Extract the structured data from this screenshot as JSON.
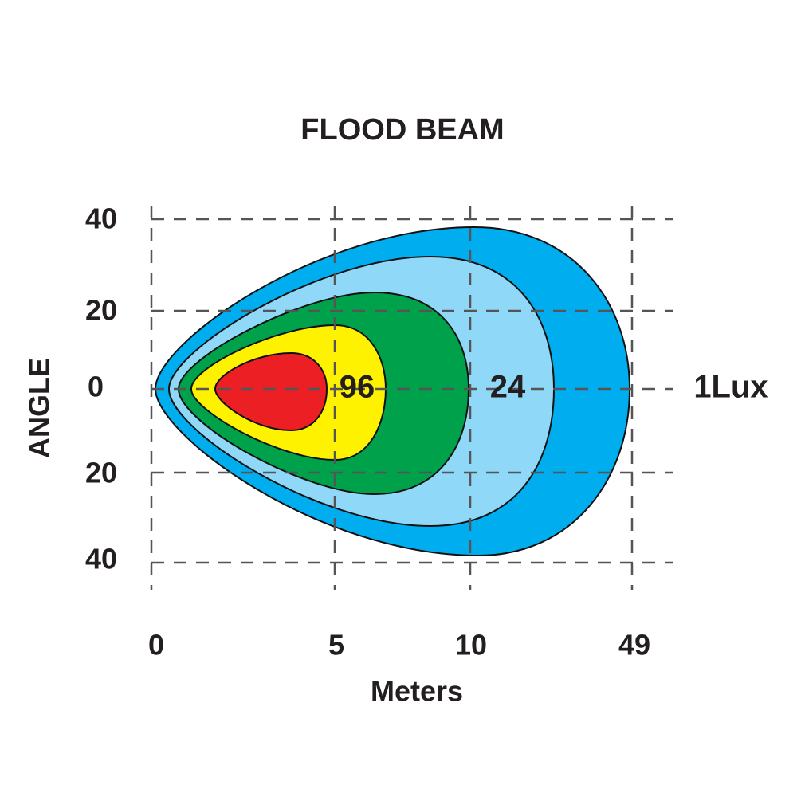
{
  "title": "FLOOD  BEAM",
  "y_axis": {
    "label": "ANGLE",
    "ticks": [
      40,
      20,
      0,
      20,
      40
    ]
  },
  "x_axis": {
    "label": "Meters",
    "ticks": [
      0,
      5,
      10,
      49
    ]
  },
  "contour_labels": [
    96,
    24,
    "1Lux"
  ]
}
